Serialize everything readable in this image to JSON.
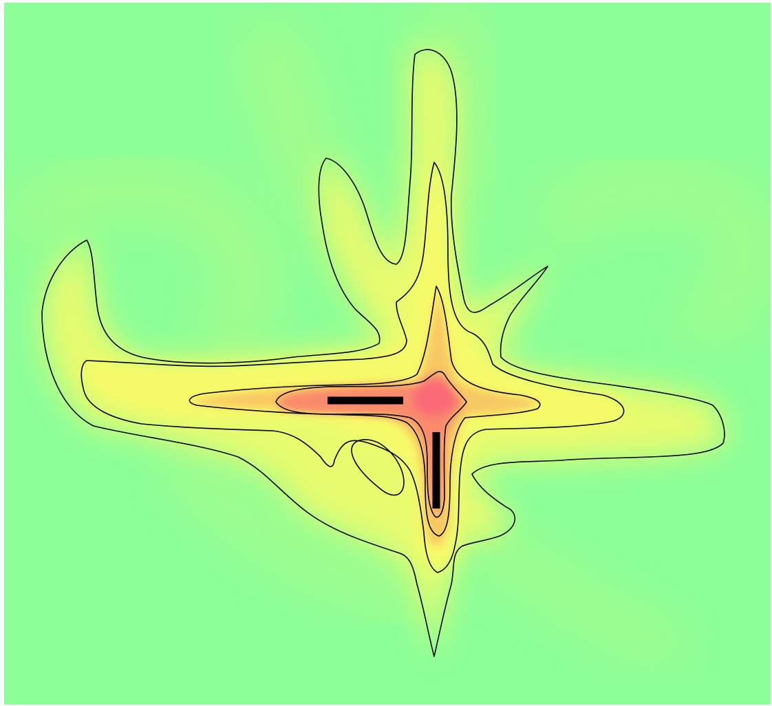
{
  "figure": {
    "type": "field-heatmap-with-contours",
    "background_color": "#8dfe98",
    "contour_color": "#000000",
    "colormap": [
      "#8dfe98",
      "#c9f97c",
      "#f7fa68",
      "#f8c964",
      "#f98a6c",
      "#fa6b76"
    ],
    "contour_levels": 4,
    "sensor_color": "#000000",
    "sensors": [
      {
        "name": "horizontal-bar",
        "orientation": "horizontal"
      },
      {
        "name": "vertical-bar",
        "orientation": "vertical"
      }
    ]
  }
}
